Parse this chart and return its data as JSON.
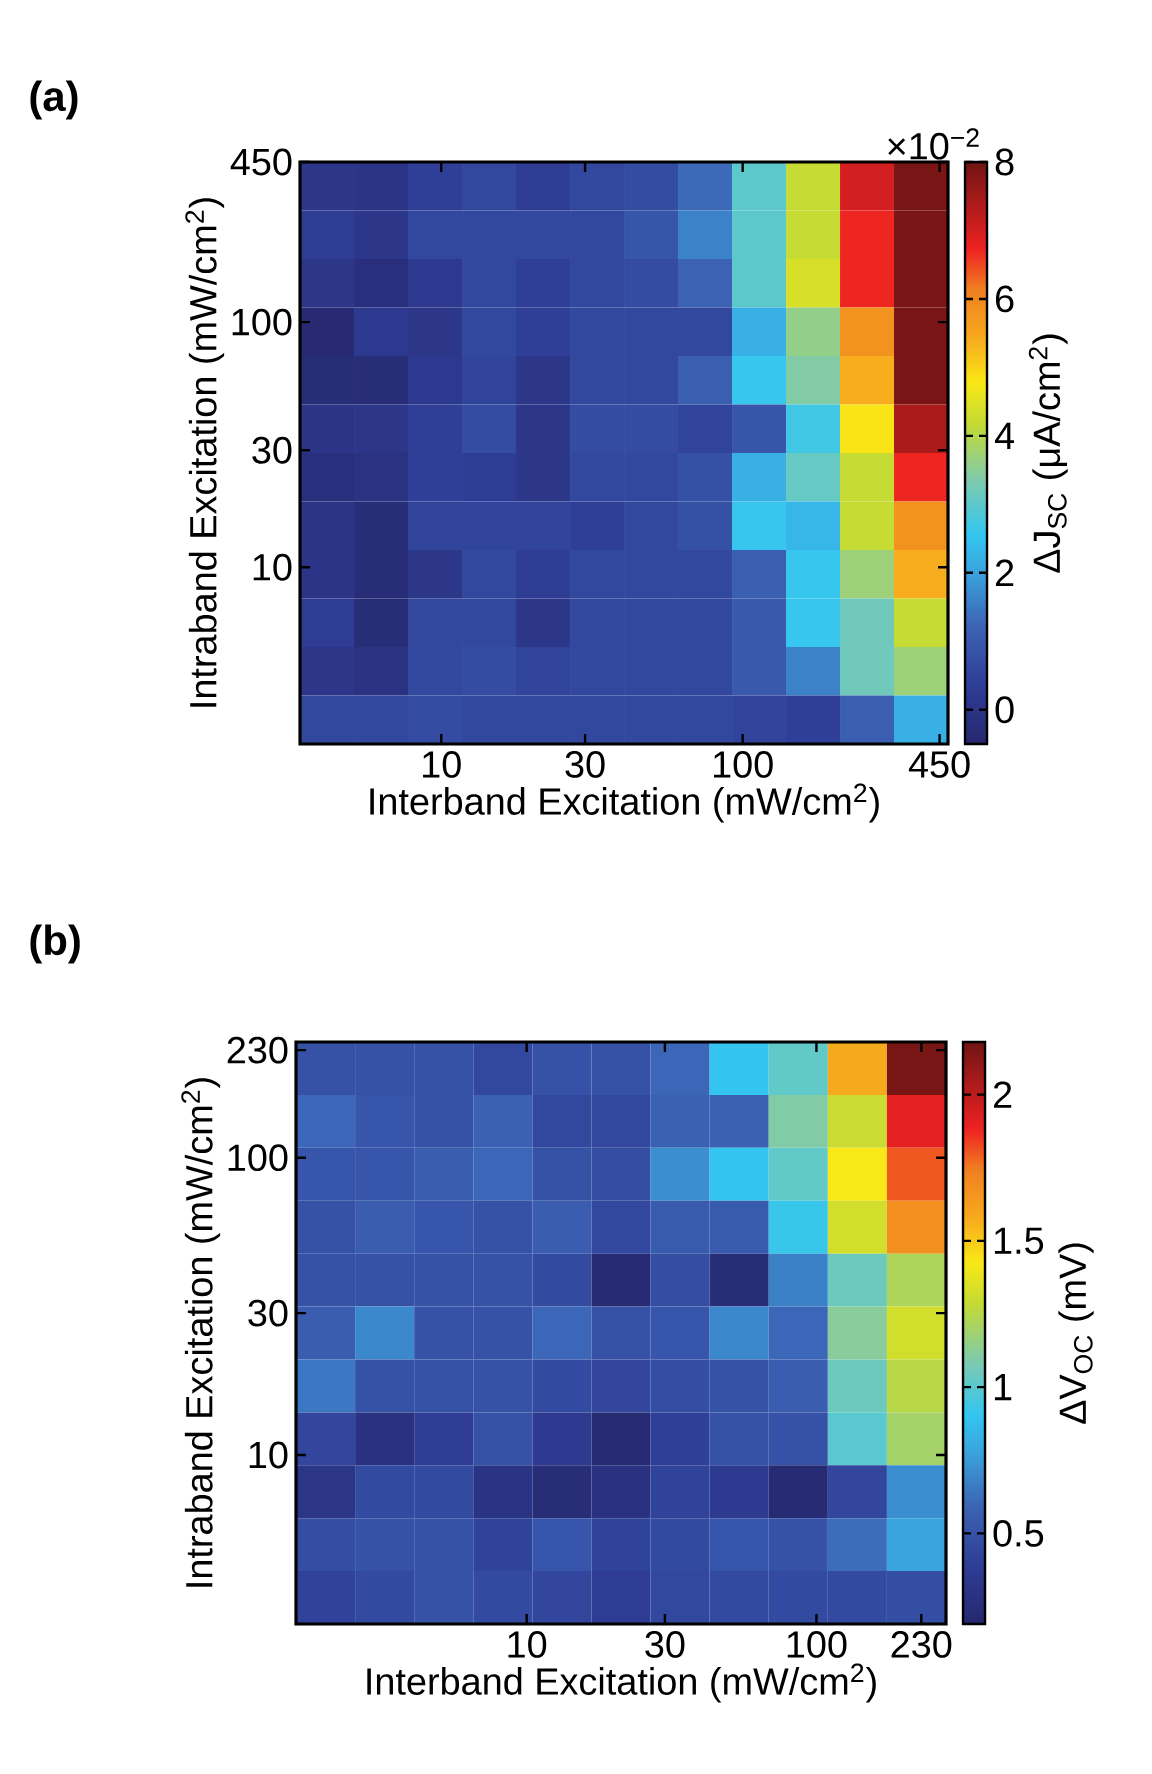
{
  "chart_data": [
    {
      "type": "heatmap",
      "title": "(a)",
      "xlabel": "Interband Excitation (mW/cm$^{2}$)",
      "ylabel": "Intraband Excitation (mW/cm$^{2}$)",
      "clabel": "ΔJ$_{SC}$ (μA/cm$^{2}$)",
      "annotations": [
        "×10$^{−2}$"
      ],
      "cells": [
        [
          0.1,
          0.0,
          0.4,
          0.6,
          0.3,
          0.6,
          0.7,
          1.3,
          3.0,
          4.2,
          7.0,
          7.9
        ],
        [
          0.3,
          0.1,
          0.6,
          0.6,
          0.6,
          0.6,
          0.9,
          1.6,
          3.0,
          4.2,
          6.7,
          7.9
        ],
        [
          0.1,
          -0.2,
          0.2,
          0.6,
          0.4,
          0.6,
          0.7,
          1.2,
          3.0,
          4.4,
          6.7,
          7.9
        ],
        [
          -0.4,
          0.2,
          0.1,
          0.6,
          0.4,
          0.6,
          0.6,
          0.6,
          2.2,
          3.6,
          5.8,
          7.9
        ],
        [
          -0.3,
          -0.3,
          0.2,
          0.5,
          0.1,
          0.6,
          0.6,
          1.1,
          2.6,
          3.4,
          5.4,
          7.9
        ],
        [
          0.0,
          0.1,
          0.4,
          0.7,
          0.1,
          0.7,
          0.7,
          0.5,
          0.9,
          2.7,
          4.8,
          7.4
        ],
        [
          -0.2,
          -0.1,
          0.4,
          0.3,
          0.1,
          0.6,
          0.6,
          0.8,
          2.2,
          3.1,
          4.2,
          6.7
        ],
        [
          0.0,
          -0.3,
          0.5,
          0.5,
          0.5,
          0.4,
          0.6,
          0.8,
          2.6,
          2.3,
          4.2,
          5.8
        ],
        [
          0.0,
          -0.3,
          0.1,
          0.6,
          0.3,
          0.6,
          0.6,
          0.6,
          1.1,
          2.6,
          3.7,
          5.4
        ],
        [
          0.3,
          -0.3,
          0.6,
          0.6,
          0.1,
          0.6,
          0.6,
          0.6,
          1.0,
          2.6,
          3.2,
          4.2
        ],
        [
          0.1,
          -0.1,
          0.6,
          0.7,
          0.5,
          0.6,
          0.6,
          0.6,
          1.0,
          1.6,
          3.2,
          3.7
        ],
        [
          0.6,
          0.6,
          0.7,
          0.6,
          0.6,
          0.6,
          0.6,
          0.6,
          0.5,
          0.4,
          1.1,
          2.2
        ]
      ],
      "clim": [
        -0.5,
        8
      ],
      "cticks": [
        0,
        2,
        4,
        6,
        8
      ],
      "xlim": [
        3.4,
        480
      ],
      "ylim": [
        1.9,
        450
      ],
      "xticks": [
        10,
        30,
        100,
        450
      ],
      "yticks": [
        10,
        30,
        100,
        450
      ],
      "log": "xy"
    },
    {
      "type": "heatmap",
      "title": "(b)",
      "xlabel": "Interband Excitation (mW/cm$^{2}$)",
      "ylabel": "Intraband Excitation (mW/cm$^{2}$)",
      "clabel": "ΔV$_{OC}$ (mV)",
      "cells": [
        [
          0.5,
          0.5,
          0.5,
          0.45,
          0.5,
          0.5,
          0.6,
          0.9,
          1.02,
          1.58,
          2.16
        ],
        [
          0.6,
          0.52,
          0.5,
          0.58,
          0.45,
          0.45,
          0.58,
          0.58,
          1.1,
          1.3,
          1.9
        ],
        [
          0.52,
          0.52,
          0.56,
          0.6,
          0.5,
          0.48,
          0.72,
          0.9,
          1.02,
          1.42,
          1.8
        ],
        [
          0.5,
          0.56,
          0.52,
          0.5,
          0.56,
          0.45,
          0.55,
          0.55,
          0.92,
          1.32,
          1.68
        ],
        [
          0.5,
          0.5,
          0.5,
          0.5,
          0.46,
          0.22,
          0.48,
          0.24,
          0.68,
          1.05,
          1.22
        ],
        [
          0.56,
          0.7,
          0.5,
          0.5,
          0.6,
          0.5,
          0.52,
          0.7,
          0.6,
          1.12,
          1.32
        ],
        [
          0.65,
          0.5,
          0.5,
          0.5,
          0.46,
          0.44,
          0.48,
          0.5,
          0.56,
          1.05,
          1.25
        ],
        [
          0.44,
          0.28,
          0.38,
          0.5,
          0.36,
          0.22,
          0.4,
          0.5,
          0.5,
          1.0,
          1.2
        ],
        [
          0.32,
          0.46,
          0.46,
          0.3,
          0.24,
          0.28,
          0.42,
          0.36,
          0.22,
          0.44,
          0.72
        ],
        [
          0.48,
          0.5,
          0.5,
          0.42,
          0.52,
          0.42,
          0.46,
          0.52,
          0.5,
          0.62,
          0.78
        ],
        [
          0.42,
          0.46,
          0.5,
          0.46,
          0.44,
          0.38,
          0.45,
          0.46,
          0.46,
          0.46,
          0.48
        ]
      ],
      "clim": [
        0.19,
        2.18
      ],
      "cticks": [
        0.5,
        1,
        1.5,
        2
      ],
      "xlim": [
        1.6,
        280
      ],
      "ylim": [
        2.7,
        245
      ],
      "xticks": [
        10,
        30,
        100,
        230
      ],
      "yticks": [
        10,
        30,
        100,
        230
      ],
      "log": "xy"
    }
  ]
}
